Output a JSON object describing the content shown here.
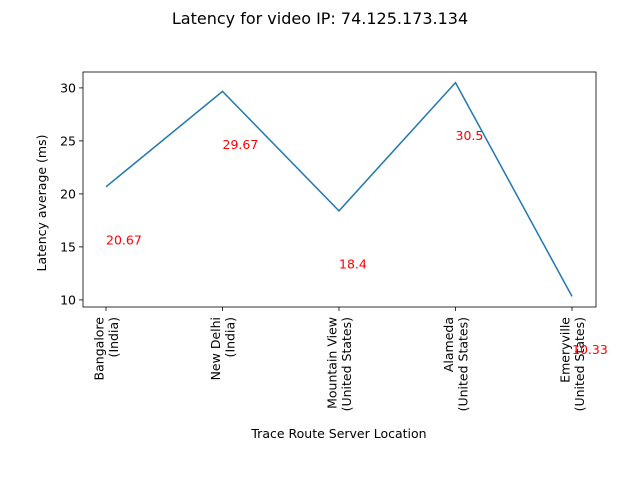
{
  "chart_data": {
    "type": "line",
    "title": "Latency for video IP: 74.125.173.134",
    "xlabel": "Trace Route Server Location",
    "ylabel": "Latency average (ms)",
    "categories": [
      [
        "Bangalore",
        "(India)"
      ],
      [
        "New Delhi",
        "(India)"
      ],
      [
        "Mountain View",
        "(United States)"
      ],
      [
        "Alameda",
        "(United States)"
      ],
      [
        "Emeryville",
        "(United States)"
      ]
    ],
    "values": [
      20.67,
      29.67,
      18.4,
      30.5,
      10.33
    ],
    "data_labels": [
      "20.67",
      "29.67",
      "18.4",
      "30.5",
      "10.33"
    ],
    "ylim": [
      9.33,
      31.5
    ],
    "yticks": [
      10,
      15,
      20,
      25,
      30
    ],
    "line_color": "#1f77b4",
    "label_color": "#ff0000",
    "grid": false,
    "legend": "none"
  }
}
